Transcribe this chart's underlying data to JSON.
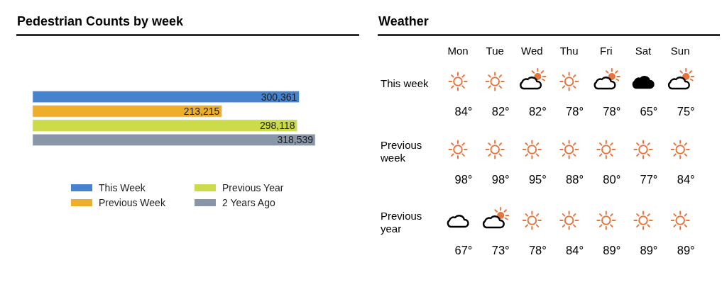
{
  "chart_data": [
    {
      "type": "bar",
      "title": "Pedestrian Counts by week",
      "orientation": "horizontal",
      "categories": [
        null
      ],
      "series": [
        {
          "name": "This Week",
          "color": "#4683cf",
          "values": [
            300361
          ],
          "value_labels": [
            "300,361"
          ]
        },
        {
          "name": "Previous Week",
          "color": "#eeae2a",
          "values": [
            213215
          ],
          "value_labels": [
            "213,215"
          ]
        },
        {
          "name": "Previous Year",
          "color": "#cbdb4a",
          "values": [
            298118
          ],
          "value_labels": [
            "298,118"
          ]
        },
        {
          "name": "2 Years Ago",
          "color": "#8996a8",
          "values": [
            318539
          ],
          "value_labels": [
            "318,539"
          ]
        }
      ],
      "legend": "bottom",
      "tick_labels": false
    },
    {
      "type": "other",
      "title": "Weather",
      "categories": [
        "Mon",
        "Tue",
        "Wed",
        "Thu",
        "Fri",
        "Sat",
        "Sun"
      ],
      "y_categories": [
        "This week",
        "Previous week",
        "Previous year"
      ],
      "cell_labels": [
        [
          "84°",
          "82°",
          "82°",
          "78°",
          "78°",
          "65°",
          "75°"
        ],
        [
          "98°",
          "98°",
          "95°",
          "88°",
          "80°",
          "77°",
          "84°"
        ],
        [
          "67°",
          "73°",
          "78°",
          "84°",
          "89°",
          "89°",
          "89°"
        ]
      ]
    }
  ]
}
